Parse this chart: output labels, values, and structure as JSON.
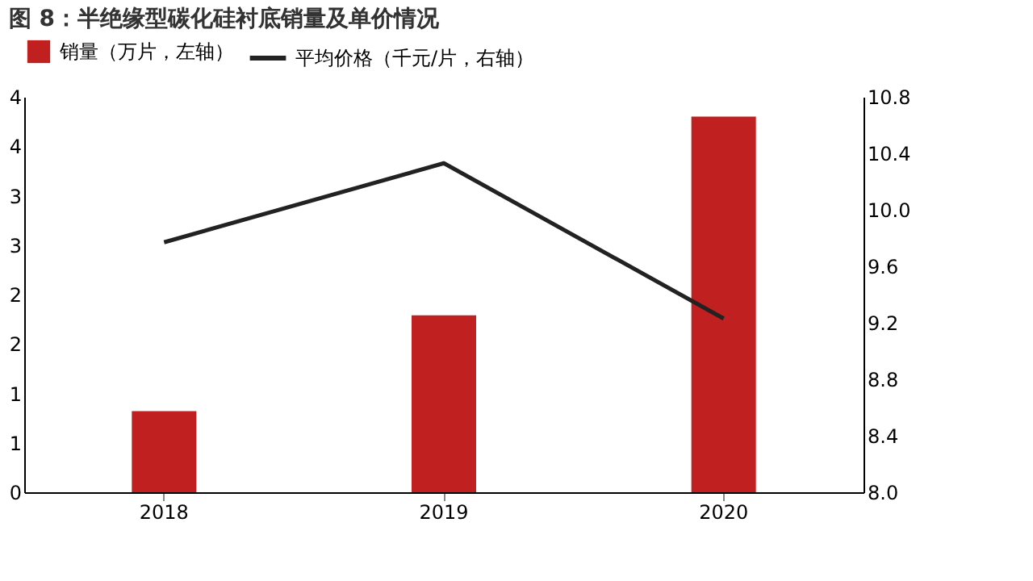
{
  "chart_data": {
    "type": "bar",
    "title": "图 8：半绝缘型碳化硅衬底销量及单价情况",
    "categories": [
      "2018",
      "2019",
      "2020"
    ],
    "series": [
      {
        "name": "销量（万片，左轴）",
        "color": "#c0201f",
        "values": [
          0.82,
          1.79,
          3.8
        ]
      },
      {
        "name": "平均价格（千元/片，右轴）",
        "type": "line",
        "axis": "y2",
        "color": "#222222",
        "values": [
          9.77,
          10.33,
          9.23
        ]
      }
    ],
    "ylim": [
      0,
      4
    ],
    "yticks": [
      0,
      {
        "value": 0.5,
        "label": "1"
      },
      1,
      {
        "value": 1.5,
        "label": "2"
      },
      2,
      {
        "value": 2.5,
        "label": "3"
      },
      3,
      {
        "value": 3.5,
        "label": "4"
      },
      4
    ],
    "y2lim": [
      8.0,
      10.8
    ],
    "y2ticks": [
      {
        "value": 8.0,
        "label": "8.0"
      },
      8.4,
      8.8,
      9.2,
      9.6,
      {
        "value": 10.0,
        "label": "10.0"
      },
      10.4,
      10.8
    ],
    "grid": false,
    "legend": "top"
  }
}
